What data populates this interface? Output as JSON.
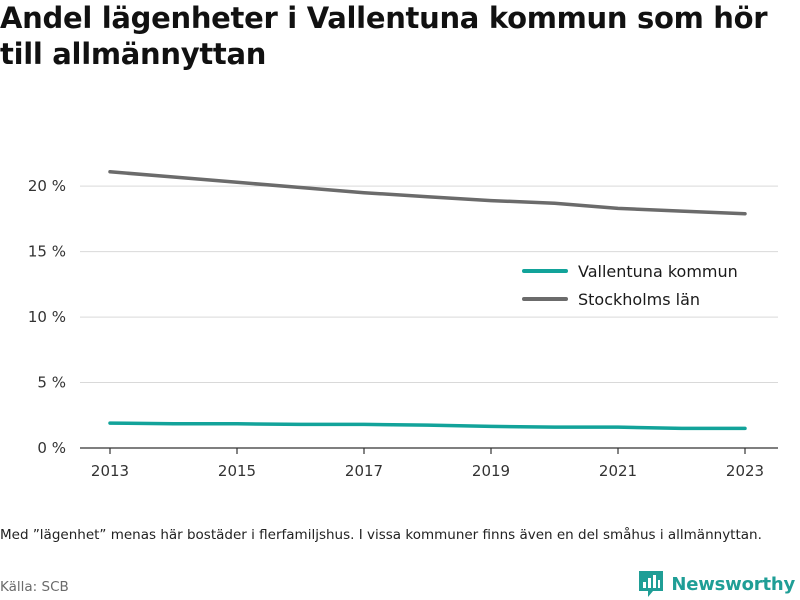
{
  "title": "Andel lägenheter i Vallentuna kommun som hör till allmännyttan",
  "note": "Med ”lägenhet” menas här bostäder i flerfamiljshus. I vissa kommuner finns även en del småhus i allmännyttan.",
  "source": "Källa: SCB",
  "brand": {
    "name": "Newsworthy",
    "logo_icon": "bar-chart-logo-icon",
    "color": "#1f9e96"
  },
  "chart_data": {
    "type": "line",
    "x": [
      2013,
      2014,
      2015,
      2016,
      2017,
      2018,
      2019,
      2020,
      2021,
      2022,
      2023
    ],
    "x_ticks": [
      2013,
      2015,
      2017,
      2019,
      2021,
      2023
    ],
    "y_ticks": [
      0,
      5,
      10,
      15,
      20
    ],
    "y_tick_labels": [
      "0 %",
      "5 %",
      "10 %",
      "15 %",
      "20 %"
    ],
    "ylim": [
      0,
      22
    ],
    "grid": true,
    "legend_position": "right",
    "series": [
      {
        "name": "Vallentuna kommun",
        "color": "#12a39a",
        "values": [
          1.9,
          1.85,
          1.85,
          1.8,
          1.8,
          1.75,
          1.65,
          1.6,
          1.6,
          1.5,
          1.5
        ]
      },
      {
        "name": "Stockholms län",
        "color": "#6b6b6b",
        "values": [
          21.1,
          20.7,
          20.3,
          19.9,
          19.5,
          19.2,
          18.9,
          18.7,
          18.3,
          18.1,
          17.9
        ]
      }
    ]
  }
}
